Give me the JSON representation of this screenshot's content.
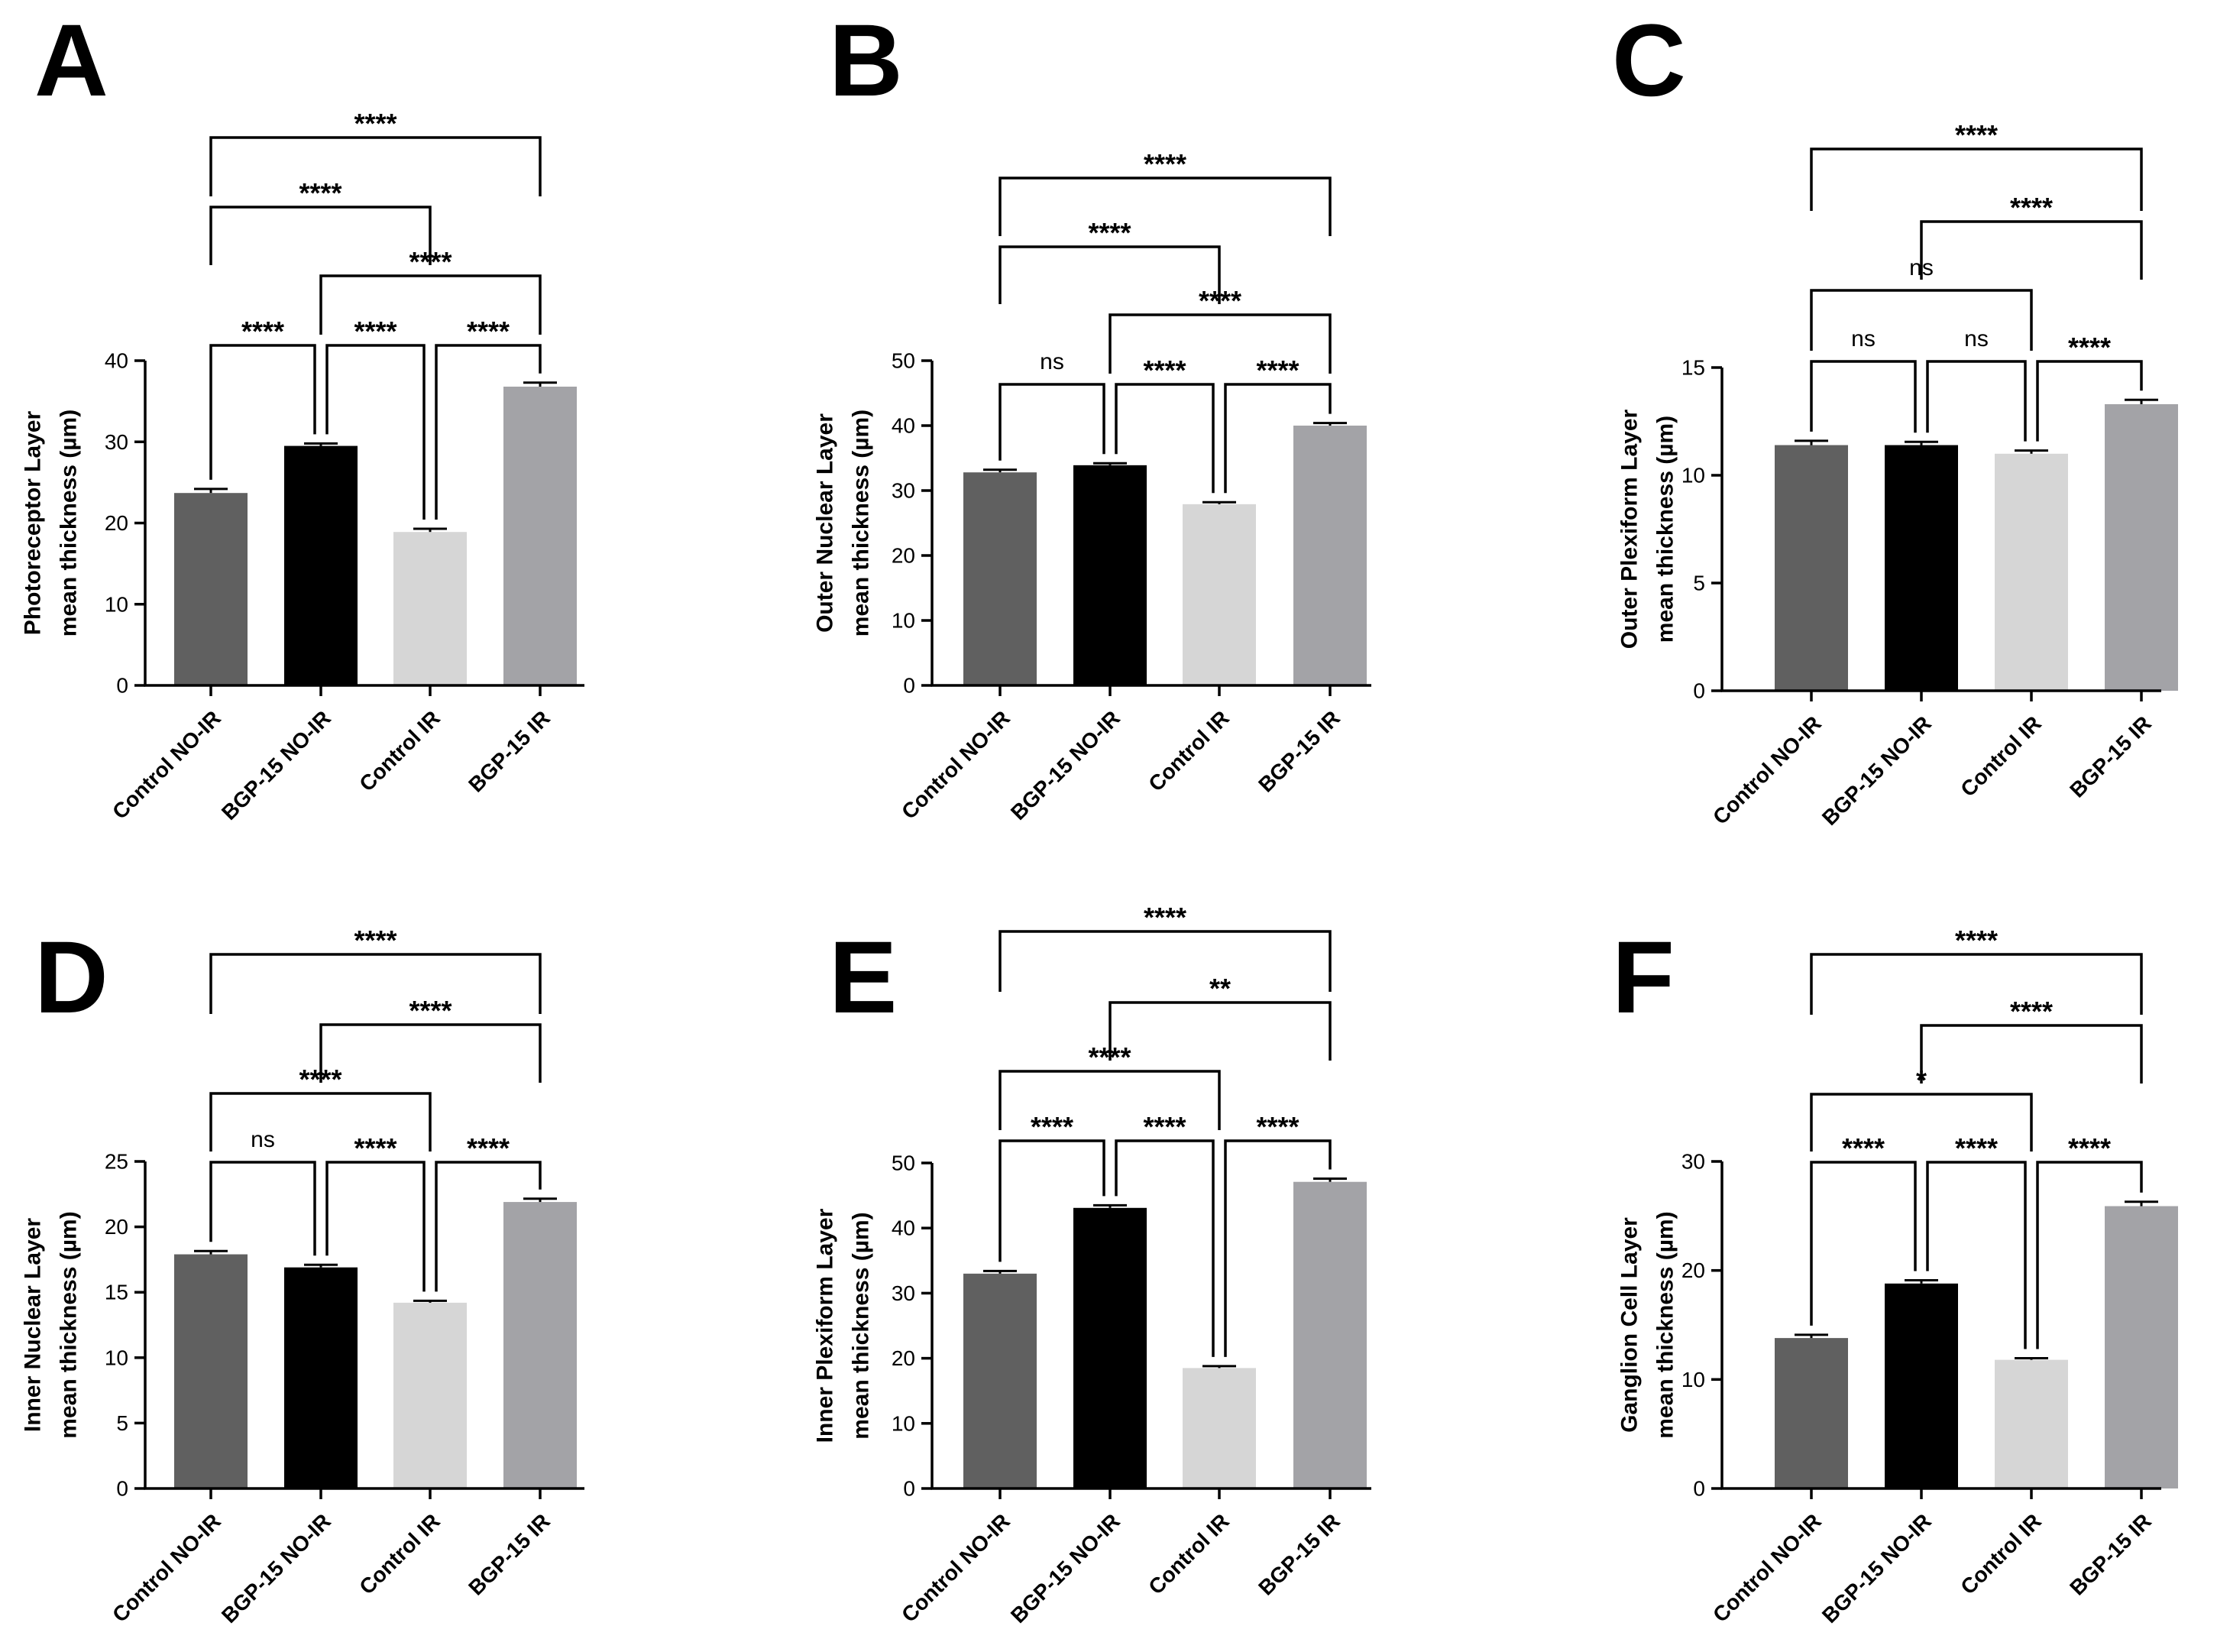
{
  "chart_data": [
    {
      "type": "bar",
      "panel": "A",
      "categories": [
        "Control NO-IR",
        "BGP-15 NO-IR",
        "Control IR",
        "BGP-15 IR"
      ],
      "values": [
        23.7,
        29.5,
        18.9,
        36.8
      ],
      "errors": [
        0.5,
        0.3,
        0.4,
        0.5
      ],
      "ylabel": [
        "Photoreceptor Layer",
        "mean thickness (µm)"
      ],
      "ylim": [
        0,
        40
      ],
      "yticks": [
        0,
        10,
        20,
        30,
        40
      ],
      "comparisons": [
        {
          "a": 0,
          "b": 1,
          "label": "****",
          "level": 1
        },
        {
          "a": 1,
          "b": 2,
          "label": "****",
          "level": 1
        },
        {
          "a": 2,
          "b": 3,
          "label": "****",
          "level": 1
        },
        {
          "a": 1,
          "b": 3,
          "label": "****",
          "level": 2
        },
        {
          "a": 0,
          "b": 2,
          "label": "****",
          "level": 3
        },
        {
          "a": 0,
          "b": 3,
          "label": "****",
          "level": 4
        }
      ]
    },
    {
      "type": "bar",
      "panel": "B",
      "categories": [
        "Control NO-IR",
        "BGP-15 NO-IR",
        "Control IR",
        "BGP-15 IR"
      ],
      "values": [
        32.8,
        33.9,
        27.9,
        40.0
      ],
      "errors": [
        0.4,
        0.3,
        0.3,
        0.4
      ],
      "ylabel": [
        "Outer Nuclear Layer",
        "mean thickness (µm)"
      ],
      "ylim": [
        0,
        50
      ],
      "yticks": [
        0,
        10,
        20,
        30,
        40,
        50
      ],
      "comparisons": [
        {
          "a": 0,
          "b": 1,
          "label": "ns",
          "level": 1
        },
        {
          "a": 1,
          "b": 2,
          "label": "****",
          "level": 1
        },
        {
          "a": 2,
          "b": 3,
          "label": "****",
          "level": 1
        },
        {
          "a": 1,
          "b": 3,
          "label": "****",
          "level": 2
        },
        {
          "a": 0,
          "b": 2,
          "label": "****",
          "level": 3
        },
        {
          "a": 0,
          "b": 3,
          "label": "****",
          "level": 4
        }
      ]
    },
    {
      "type": "bar",
      "panel": "C",
      "categories": [
        "Control NO-IR",
        "BGP-15 NO-IR",
        "Control IR",
        "BGP-15 IR"
      ],
      "values": [
        11.4,
        11.4,
        11.0,
        13.3
      ],
      "errors": [
        0.2,
        0.15,
        0.15,
        0.2
      ],
      "ylabel": [
        "Outer Plexiform Layer",
        "mean thickness (µm)"
      ],
      "ylim": [
        0,
        15
      ],
      "yticks": [
        0,
        5,
        10,
        15
      ],
      "comparisons": [
        {
          "a": 0,
          "b": 1,
          "label": "ns",
          "level": 1
        },
        {
          "a": 1,
          "b": 2,
          "label": "ns",
          "level": 1
        },
        {
          "a": 2,
          "b": 3,
          "label": "****",
          "level": 1
        },
        {
          "a": 0,
          "b": 2,
          "label": "ns",
          "level": 2
        },
        {
          "a": 1,
          "b": 3,
          "label": "****",
          "level": 3
        },
        {
          "a": 0,
          "b": 3,
          "label": "****",
          "level": 4
        }
      ]
    },
    {
      "type": "bar",
      "panel": "D",
      "categories": [
        "Control NO-IR",
        "BGP-15 NO-IR",
        "Control IR",
        "BGP-15 IR"
      ],
      "values": [
        17.9,
        16.9,
        14.2,
        21.9
      ],
      "errors": [
        0.25,
        0.2,
        0.15,
        0.25
      ],
      "ylabel": [
        "Inner Nuclear Layer",
        "mean thickness (µm)"
      ],
      "ylim": [
        0,
        25
      ],
      "yticks": [
        0,
        5,
        10,
        15,
        20,
        25
      ],
      "comparisons": [
        {
          "a": 0,
          "b": 1,
          "label": "ns",
          "level": 1
        },
        {
          "a": 1,
          "b": 2,
          "label": "****",
          "level": 1
        },
        {
          "a": 2,
          "b": 3,
          "label": "****",
          "level": 1
        },
        {
          "a": 0,
          "b": 2,
          "label": "****",
          "level": 2
        },
        {
          "a": 1,
          "b": 3,
          "label": "****",
          "level": 3
        },
        {
          "a": 0,
          "b": 3,
          "label": "****",
          "level": 4
        }
      ]
    },
    {
      "type": "bar",
      "panel": "E",
      "categories": [
        "Control NO-IR",
        "BGP-15 NO-IR",
        "Control IR",
        "BGP-15 IR"
      ],
      "values": [
        33.0,
        43.1,
        18.5,
        47.1
      ],
      "errors": [
        0.4,
        0.4,
        0.3,
        0.5
      ],
      "ylabel": [
        "Inner Plexiform  Layer",
        "mean thickness (µm)"
      ],
      "ylim": [
        0,
        50
      ],
      "yticks": [
        0,
        10,
        20,
        30,
        40,
        50
      ],
      "comparisons": [
        {
          "a": 0,
          "b": 1,
          "label": "****",
          "level": 1
        },
        {
          "a": 1,
          "b": 2,
          "label": "****",
          "level": 1
        },
        {
          "a": 2,
          "b": 3,
          "label": "****",
          "level": 1
        },
        {
          "a": 0,
          "b": 2,
          "label": "****",
          "level": 2
        },
        {
          "a": 1,
          "b": 3,
          "label": "**",
          "level": 3
        },
        {
          "a": 0,
          "b": 3,
          "label": "****",
          "level": 4
        }
      ]
    },
    {
      "type": "bar",
      "panel": "F",
      "categories": [
        "Control NO-IR",
        "BGP-15 NO-IR",
        "Control IR",
        "BGP-15 IR"
      ],
      "values": [
        13.8,
        18.8,
        11.8,
        25.9
      ],
      "errors": [
        0.3,
        0.3,
        0.15,
        0.4
      ],
      "ylabel": [
        "Ganglion Cell Layer",
        "mean thickness (µm)"
      ],
      "ylim": [
        0,
        30
      ],
      "yticks": [
        0,
        10,
        20,
        30
      ],
      "comparisons": [
        {
          "a": 0,
          "b": 1,
          "label": "****",
          "level": 1
        },
        {
          "a": 1,
          "b": 2,
          "label": "****",
          "level": 1
        },
        {
          "a": 2,
          "b": 3,
          "label": "****",
          "level": 1
        },
        {
          "a": 0,
          "b": 2,
          "label": "*",
          "level": 2
        },
        {
          "a": 1,
          "b": 3,
          "label": "****",
          "level": 3
        },
        {
          "a": 0,
          "b": 3,
          "label": "****",
          "level": 4
        }
      ]
    }
  ],
  "colors": {
    "bars": [
      "#606060",
      "#000000",
      "#d6d6d6",
      "#a3a3a7"
    ]
  }
}
